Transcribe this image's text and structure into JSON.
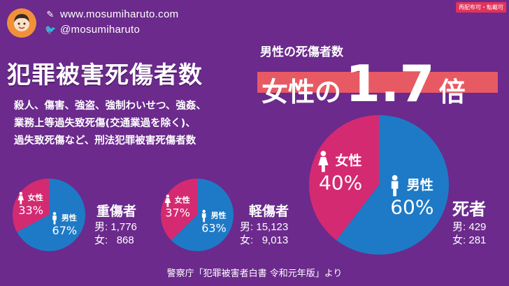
{
  "header": {
    "website": "www.mosumiharuto.com",
    "twitter": "@mosumiharuto",
    "badge": "再配布可・転載可"
  },
  "title": "犯罪被害死傷者数",
  "description": [
    "殺人、傷害、強盗、強制わいせつ、強姦、",
    "業務上等過失致死傷(交通業過を除く)、",
    "過失致死傷など、刑法犯罪被害死傷者数"
  ],
  "headline": {
    "subtitle": "男性の死傷者数",
    "prefix": "女性の",
    "number": "1.7",
    "suffix": "倍"
  },
  "labels": {
    "male": "男性",
    "female": "女性",
    "male_short": "男",
    "female_short": "女"
  },
  "colors": {
    "background": "#6b2a8c",
    "male": "#1e7ac6",
    "female": "#d42a72",
    "highlight": "#e85a63",
    "avatar": "#f0913a"
  },
  "source": "警察庁「犯罪被害者白書 令和元年版」より",
  "chart_data": [
    {
      "type": "pie",
      "title": "重傷者",
      "categories": [
        "男性",
        "女性"
      ],
      "values": [
        1776,
        868
      ],
      "percent_labels": [
        "67%",
        "33%"
      ],
      "stats": {
        "male": "1,776",
        "female": "868"
      }
    },
    {
      "type": "pie",
      "title": "軽傷者",
      "categories": [
        "男性",
        "女性"
      ],
      "values": [
        15123,
        9013
      ],
      "percent_labels": [
        "63%",
        "37%"
      ],
      "stats": {
        "male": "15,123",
        "female": "9,013"
      }
    },
    {
      "type": "pie",
      "title": "死者",
      "categories": [
        "男性",
        "女性"
      ],
      "values": [
        429,
        281
      ],
      "percent_labels": [
        "60%",
        "40%"
      ],
      "stats": {
        "male": "429",
        "female": "281"
      }
    }
  ]
}
